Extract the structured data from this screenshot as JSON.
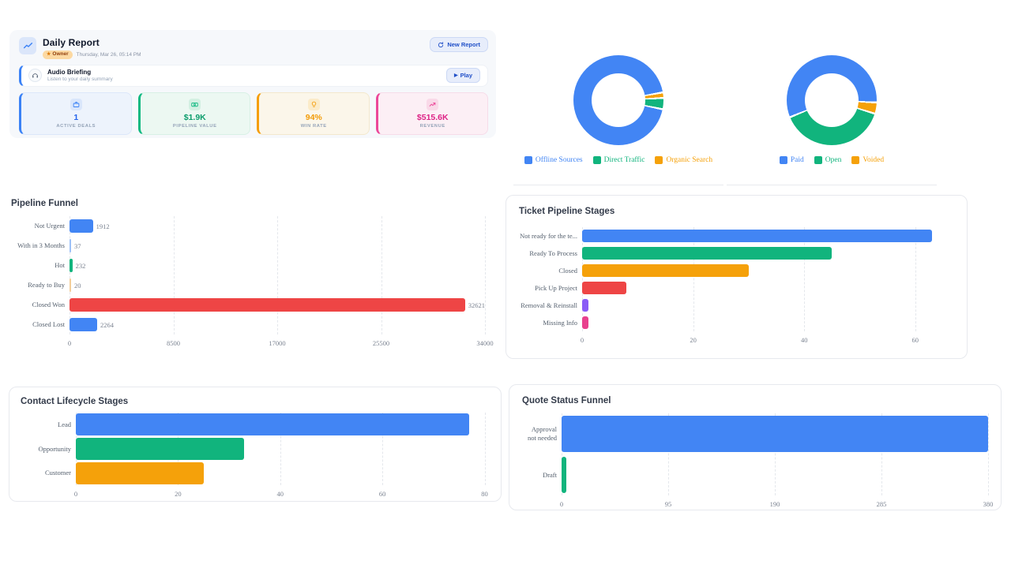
{
  "daily_report": {
    "title": "Daily Report",
    "badge": "Owner",
    "date": "Thursday, Mar 26, 05:14 PM",
    "new_report_label": "New Report",
    "audio": {
      "title": "Audio Briefing",
      "subtitle": "Listen to your daily summary",
      "play_label": "Play"
    },
    "stats": [
      {
        "value": "1",
        "label": "ACTIVE DEALS",
        "icon": "briefcase-icon",
        "accent": "#3B82F6",
        "value_color": "#2563EB",
        "bg": "#EDF3FC",
        "chip": "#D9E6FB",
        "border": "#DCE7FA"
      },
      {
        "value": "$1.9K",
        "label": "PIPELINE VALUE",
        "icon": "banknote-icon",
        "accent": "#10B981",
        "value_color": "#0C9D6C",
        "bg": "#ECF8F2",
        "chip": "#D3F0E2",
        "border": "#D8F0E5"
      },
      {
        "value": "94%",
        "label": "WIN RATE",
        "icon": "lightbulb-icon",
        "accent": "#F59E0B",
        "value_color": "#F29B06",
        "bg": "#FBF6EA",
        "chip": "#FBEBC9",
        "border": "#F3E8CD"
      },
      {
        "value": "$515.6K",
        "label": "REVENUE",
        "icon": "trend-up-icon",
        "accent": "#EC4899",
        "value_color": "#DE2487",
        "bg": "#FCEFF5",
        "chip": "#F9D9E8",
        "border": "#F6DCE9"
      }
    ]
  },
  "chart_data": {
    "donut_charts": [
      {
        "type": "pie",
        "start_angle": 80,
        "segments": [
          {
            "label": "Organic Search",
            "pct": 2,
            "color": "#F5A10A"
          },
          {
            "label": "Direct Traffic",
            "pct": 4,
            "color": "#11B47D"
          },
          {
            "label": "Offline Sources",
            "pct": 94,
            "color": "#4285F4"
          }
        ],
        "legend_items": [
          {
            "label": "Offline Sources",
            "color": "#4285F4"
          },
          {
            "label": "Direct Traffic",
            "color": "#11B47D"
          },
          {
            "label": "Organic Search",
            "color": "#F5A10A"
          }
        ]
      },
      {
        "type": "pie",
        "start_angle": 93,
        "segments": [
          {
            "label": "Voided",
            "pct": 4,
            "color": "#F5A10A"
          },
          {
            "label": "Open",
            "pct": 39,
            "color": "#11B47D"
          },
          {
            "label": "Paid",
            "pct": 57,
            "color": "#4285F4"
          }
        ],
        "legend_items": [
          {
            "label": "Paid",
            "color": "#4285F4"
          },
          {
            "label": "Open",
            "color": "#11B47D"
          },
          {
            "label": "Voided",
            "color": "#F5A10A"
          }
        ]
      }
    ],
    "bar_charts": {
      "pipeline": {
        "type": "bar",
        "title": "Pipeline Funnel",
        "xmax": 34000,
        "ticks": [
          0,
          8500,
          17000,
          25500,
          34000
        ],
        "show_values": true,
        "bars": [
          {
            "label": "Not Urgent",
            "value": 1912,
            "color": "#4285F4"
          },
          {
            "label": "With in 3 Months",
            "value": 37,
            "color": "#9DC1F8"
          },
          {
            "label": "Hot",
            "value": 232,
            "color": "#11B47D"
          },
          {
            "label": "Ready to Buy",
            "value": 20,
            "color": "#F3CF9B"
          },
          {
            "label": "Closed Won",
            "value": 32621,
            "color": "#EE4545"
          },
          {
            "label": "Closed Lost",
            "value": 2264,
            "color": "#4285F4"
          }
        ]
      },
      "ticket": {
        "type": "bar",
        "title": "Ticket Pipeline Stages",
        "xmax": 67,
        "ticks": [
          0,
          20,
          40,
          60
        ],
        "show_values": false,
        "bars": [
          {
            "label": "Not ready for the te...",
            "value": 63,
            "color": "#4285F4"
          },
          {
            "label": "Ready To Process",
            "value": 45,
            "color": "#11B47D"
          },
          {
            "label": "Closed",
            "value": 30,
            "color": "#F5A10A"
          },
          {
            "label": "Pick Up Project",
            "value": 8,
            "color": "#EE4545"
          },
          {
            "label": "Removal & Reinstall",
            "value": 1.2,
            "color": "#8A5CF6"
          },
          {
            "label": "Missing Info",
            "value": 1.2,
            "color": "#E8418E"
          }
        ]
      },
      "contact": {
        "type": "bar",
        "title": "Contact Lifecycle Stages",
        "xmax": 81,
        "ticks": [
          0,
          20,
          40,
          60,
          80
        ],
        "show_values": false,
        "bars": [
          {
            "label": "Lead",
            "value": 77,
            "color": "#4285F4"
          },
          {
            "label": "Opportunity",
            "value": 33,
            "color": "#11B47D"
          },
          {
            "label": "Customer",
            "value": 25,
            "color": "#F5A10A"
          }
        ]
      },
      "quote": {
        "type": "bar",
        "title": "Quote Status Funnel",
        "xmax": 380,
        "ticks": [
          0,
          95,
          190,
          285,
          380
        ],
        "show_values": false,
        "bars": [
          {
            "label": "Approval not needed",
            "value": 380,
            "color": "#4285F4"
          },
          {
            "label": "Draft",
            "value": 4,
            "color": "#11B47D"
          }
        ]
      }
    }
  }
}
